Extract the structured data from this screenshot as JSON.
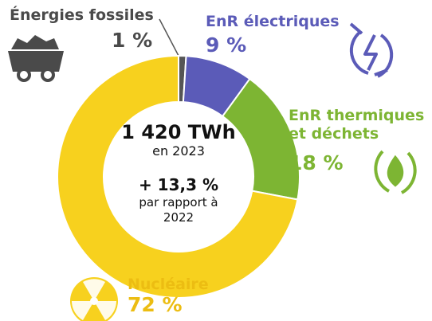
{
  "chart_data": {
    "type": "pie",
    "categories": [
      "Énergies fossiles",
      "EnR électriques",
      "EnR thermiques et déchets",
      "Nucléaire"
    ],
    "values": [
      1,
      9,
      18,
      72
    ],
    "value_labels": [
      "1 %",
      "9 %",
      "18 %",
      "72 %"
    ],
    "colors": [
      "#555555",
      "#5b5bb8",
      "#7db533",
      "#f7d11e"
    ],
    "label_colors": [
      "#4a4a4a",
      "#5b5bb8",
      "#7db533",
      "#ecbd12"
    ],
    "center": {
      "total": "1 420 TWh",
      "year": "en 2023",
      "change": "+ 13,3 %",
      "comparison": "par rapport à 2022"
    }
  }
}
